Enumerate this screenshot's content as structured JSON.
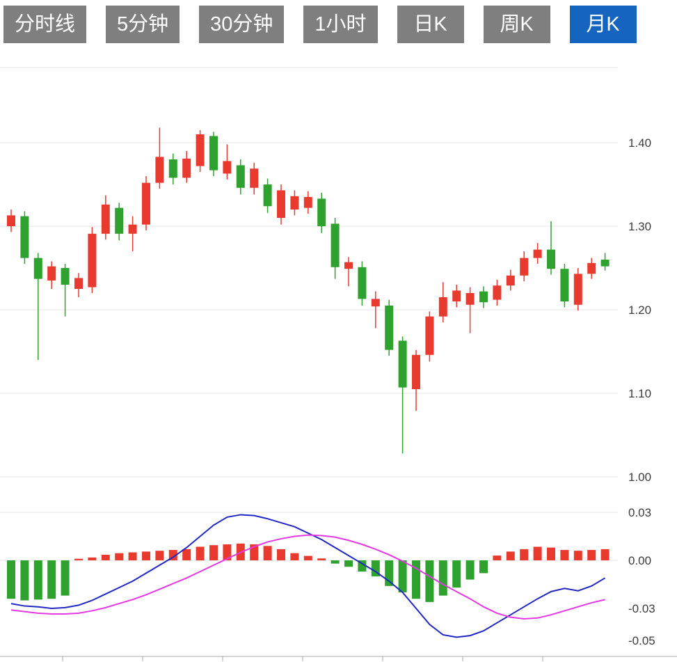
{
  "tabbar": {
    "tabs": [
      {
        "label": "分时线",
        "active": false
      },
      {
        "label": "5分钟",
        "active": false
      },
      {
        "label": "30分钟",
        "active": false
      },
      {
        "label": "1小时",
        "active": false
      },
      {
        "label": "日K",
        "active": false
      },
      {
        "label": "周K",
        "active": false
      },
      {
        "label": "月K",
        "active": true
      }
    ]
  },
  "chart_data": {
    "type": "candlestick",
    "subtype": "candlestick-with-macd",
    "colors": {
      "up": "#e93a30",
      "down": "#2fa12e",
      "dif_line": "#2127c4",
      "dea_line": "#e438e4",
      "grid": "#e6e6e6",
      "axis_line": "#aaaaaa",
      "axis_text": "#3c3c3c"
    },
    "price_panel": {
      "y_ticks": [
        {
          "v": 1.4,
          "label": "1.40"
        },
        {
          "v": 1.3,
          "label": "1.30"
        },
        {
          "v": 1.2,
          "label": "1.20"
        },
        {
          "v": 1.1,
          "label": "1.10"
        },
        {
          "v": 1.0,
          "label": "1.00"
        }
      ],
      "ohlc_note": "each candle is [open, high, low, close]; red = close>open (CN convention)",
      "candles": [
        [
          1.3,
          1.32,
          1.293,
          1.313
        ],
        [
          1.312,
          1.318,
          1.255,
          1.262
        ],
        [
          1.262,
          1.268,
          1.14,
          1.237
        ],
        [
          1.235,
          1.258,
          1.225,
          1.252
        ],
        [
          1.25,
          1.255,
          1.192,
          1.23
        ],
        [
          1.225,
          1.244,
          1.215,
          1.238
        ],
        [
          1.227,
          1.299,
          1.22,
          1.291
        ],
        [
          1.291,
          1.337,
          1.284,
          1.326
        ],
        [
          1.322,
          1.328,
          1.283,
          1.291
        ],
        [
          1.291,
          1.312,
          1.27,
          1.302
        ],
        [
          1.302,
          1.36,
          1.295,
          1.352
        ],
        [
          1.352,
          1.418,
          1.345,
          1.383
        ],
        [
          1.38,
          1.387,
          1.35,
          1.358
        ],
        [
          1.358,
          1.39,
          1.352,
          1.381
        ],
        [
          1.372,
          1.415,
          1.365,
          1.41
        ],
        [
          1.408,
          1.413,
          1.36,
          1.367
        ],
        [
          1.363,
          1.398,
          1.356,
          1.378
        ],
        [
          1.373,
          1.38,
          1.338,
          1.346
        ],
        [
          1.346,
          1.376,
          1.338,
          1.369
        ],
        [
          1.35,
          1.357,
          1.316,
          1.324
        ],
        [
          1.31,
          1.35,
          1.302,
          1.343
        ],
        [
          1.32,
          1.343,
          1.313,
          1.336
        ],
        [
          1.322,
          1.342,
          1.315,
          1.335
        ],
        [
          1.333,
          1.34,
          1.292,
          1.3
        ],
        [
          1.303,
          1.31,
          1.237,
          1.251
        ],
        [
          1.249,
          1.263,
          1.228,
          1.257
        ],
        [
          1.251,
          1.258,
          1.205,
          1.213
        ],
        [
          1.204,
          1.222,
          1.178,
          1.213
        ],
        [
          1.205,
          1.212,
          1.145,
          1.152
        ],
        [
          1.163,
          1.168,
          1.028,
          1.107
        ],
        [
          1.105,
          1.152,
          1.079,
          1.146
        ],
        [
          1.146,
          1.198,
          1.138,
          1.192
        ],
        [
          1.192,
          1.233,
          1.185,
          1.215
        ],
        [
          1.21,
          1.23,
          1.203,
          1.223
        ],
        [
          1.206,
          1.227,
          1.172,
          1.22
        ],
        [
          1.222,
          1.228,
          1.202,
          1.209
        ],
        [
          1.212,
          1.236,
          1.205,
          1.229
        ],
        [
          1.229,
          1.248,
          1.223,
          1.241
        ],
        [
          1.241,
          1.27,
          1.234,
          1.262
        ],
        [
          1.262,
          1.28,
          1.255,
          1.272
        ],
        [
          1.272,
          1.306,
          1.242,
          1.249
        ],
        [
          1.249,
          1.255,
          1.203,
          1.21
        ],
        [
          1.206,
          1.25,
          1.199,
          1.243
        ],
        [
          1.243,
          1.262,
          1.237,
          1.256
        ],
        [
          1.26,
          1.268,
          1.247,
          1.252
        ]
      ]
    },
    "macd_panel": {
      "y_ticks": [
        {
          "v": 0.03,
          "label": "0.03"
        },
        {
          "v": 0.0,
          "label": "0.00"
        },
        {
          "v": -0.03,
          "label": "-0.03"
        },
        {
          "v": -0.05,
          "label": "-0.05"
        }
      ],
      "histogram": [
        -0.024,
        -0.025,
        -0.0245,
        -0.024,
        -0.022,
        0.001,
        0.0018,
        0.0035,
        0.0045,
        0.005,
        0.0055,
        0.006,
        0.0065,
        0.007,
        0.0085,
        0.0095,
        0.01,
        0.0105,
        0.01,
        0.009,
        0.007,
        0.0045,
        0.0028,
        0.0012,
        -0.002,
        -0.004,
        -0.007,
        -0.01,
        -0.016,
        -0.02,
        -0.024,
        -0.026,
        -0.022,
        -0.017,
        -0.012,
        -0.008,
        0.003,
        0.0055,
        0.007,
        0.0085,
        0.008,
        0.0065,
        0.006,
        0.0065,
        0.007
      ],
      "dif": [
        -0.027,
        -0.0285,
        -0.029,
        -0.03,
        -0.0295,
        -0.028,
        -0.025,
        -0.021,
        -0.017,
        -0.013,
        -0.008,
        -0.003,
        0.002,
        0.008,
        0.015,
        0.022,
        0.027,
        0.0285,
        0.028,
        0.026,
        0.0235,
        0.021,
        0.017,
        0.013,
        0.008,
        0.003,
        -0.002,
        -0.007,
        -0.013,
        -0.02,
        -0.03,
        -0.04,
        -0.0465,
        -0.048,
        -0.047,
        -0.044,
        -0.039,
        -0.034,
        -0.029,
        -0.024,
        -0.0195,
        -0.0175,
        -0.019,
        -0.016,
        -0.011
      ],
      "dea": [
        -0.031,
        -0.032,
        -0.033,
        -0.0335,
        -0.0335,
        -0.033,
        -0.0315,
        -0.0295,
        -0.027,
        -0.0245,
        -0.0215,
        -0.018,
        -0.0145,
        -0.011,
        -0.007,
        -0.003,
        0.001,
        0.005,
        0.0085,
        0.0115,
        0.0135,
        0.015,
        0.0158,
        0.0155,
        0.0145,
        0.0125,
        0.01,
        0.007,
        0.0035,
        -0.0005,
        -0.005,
        -0.01,
        -0.015,
        -0.0195,
        -0.024,
        -0.029,
        -0.033,
        -0.0355,
        -0.0365,
        -0.036,
        -0.034,
        -0.0315,
        -0.029,
        -0.0265,
        -0.0245
      ]
    }
  }
}
